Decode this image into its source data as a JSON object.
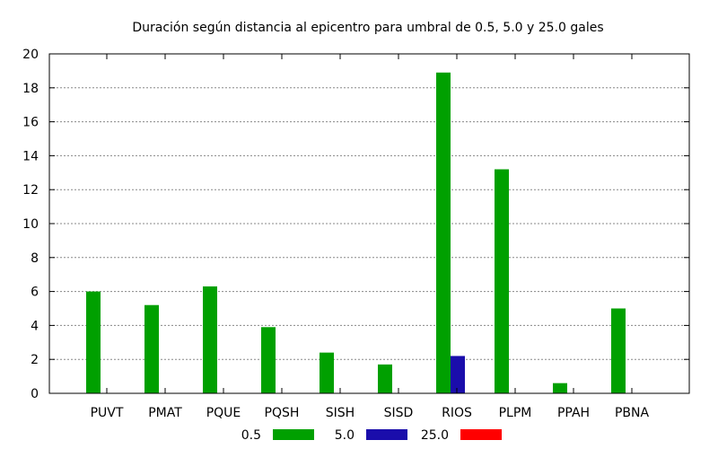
{
  "chart_data": {
    "type": "bar",
    "title": "Duración según distancia al epicentro para umbral de 0.5, 5.0 y 25.0 gales",
    "xlabel": "",
    "ylabel": "",
    "ylim": [
      0,
      20
    ],
    "yticks": [
      0,
      2,
      4,
      6,
      8,
      10,
      12,
      14,
      16,
      18,
      20
    ],
    "grid": true,
    "legend_position": "bottom",
    "categories": [
      "PUVT",
      "PMAT",
      "PQUE",
      "PQSH",
      "SISH",
      "SISD",
      "RIOS",
      "PLPM",
      "PPAH",
      "PBNA"
    ],
    "series": [
      {
        "name": "0.5",
        "color": "#00a000",
        "values": [
          6.0,
          5.2,
          6.3,
          3.9,
          2.4,
          1.7,
          18.9,
          13.2,
          0.6,
          5.0
        ]
      },
      {
        "name": "5.0",
        "color": "#1a0dab",
        "values": [
          0,
          0,
          0,
          0,
          0,
          0,
          2.2,
          0,
          0,
          0
        ]
      },
      {
        "name": "25.0",
        "color": "#ff0000",
        "values": [
          0,
          0,
          0,
          0,
          0,
          0,
          0,
          0,
          0,
          0
        ]
      }
    ]
  }
}
